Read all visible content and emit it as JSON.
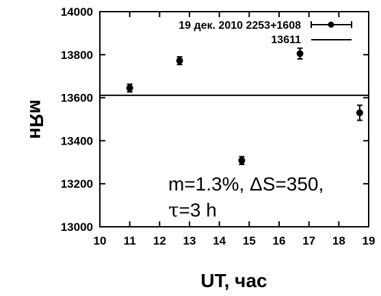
{
  "chart_data": {
    "type": "scatter",
    "xlabel": "UT, час",
    "ylabel": "мЯн",
    "xlim": [
      10,
      19
    ],
    "ylim": [
      13000,
      14000
    ],
    "xticks": [
      10,
      11,
      12,
      13,
      14,
      15,
      16,
      17,
      18,
      19
    ],
    "yticks": [
      13000,
      13200,
      13400,
      13600,
      13800,
      14000
    ],
    "series": [
      {
        "name": "19 дек. 2010 2253+1608",
        "marker": "filled-circle",
        "error_bars": "y",
        "points": [
          {
            "x": 11.0,
            "y": 13645,
            "err": 18
          },
          {
            "x": 12.67,
            "y": 13772,
            "err": 18
          },
          {
            "x": 14.75,
            "y": 13308,
            "err": 18
          },
          {
            "x": 16.7,
            "y": 13805,
            "err": 25
          },
          {
            "x": 18.7,
            "y": 13530,
            "err": 35
          }
        ]
      },
      {
        "name": "13611",
        "type": "hline",
        "y": 13611
      }
    ],
    "legend_position": "top-right",
    "annotations": {
      "line1": "m=1.3%, ΔS=350,",
      "tau_symbol": "τ",
      "tau_value": "=3 h"
    },
    "grid": false
  }
}
